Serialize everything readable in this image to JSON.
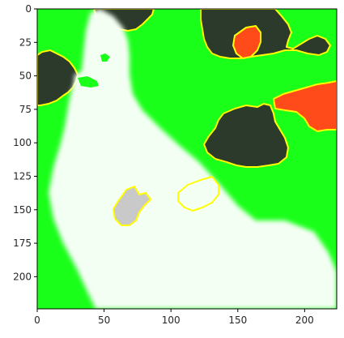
{
  "chart_data": {
    "type": "heatmap",
    "title": "",
    "xlabel": "",
    "ylabel": "",
    "xlim": [
      0,
      224
    ],
    "ylim": [
      224,
      0
    ],
    "xticks": [
      0,
      50,
      100,
      150,
      200
    ],
    "yticks": [
      0,
      25,
      50,
      75,
      100,
      125,
      150,
      175,
      200
    ],
    "grid": false,
    "legend": "none",
    "image": {
      "subject": "white dog sitting on grass",
      "overlay": "segmentation mask with yellow-outlined regions",
      "colors": {
        "background_mask": "#1aff1a",
        "dog": "#f4fff4",
        "dark_region": "#2b3a2b",
        "red_region": "#ff4a1a",
        "outline": "#ffff00",
        "gray_region": "#c9c9c9",
        "axis": "#000000"
      }
    }
  }
}
